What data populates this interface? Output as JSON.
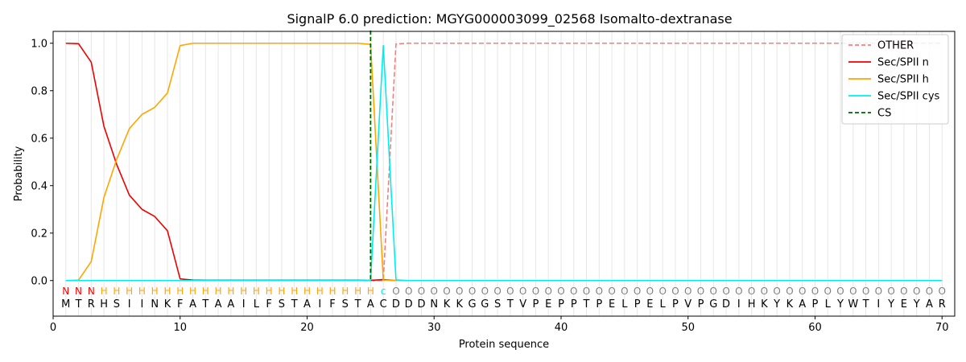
{
  "chart_data": {
    "type": "line",
    "title": "SignalP 6.0 prediction: MGYG000003099_02568 Isomalto-dextranase",
    "xlabel": "Protein sequence",
    "ylabel": "Probability",
    "xlim": [
      0,
      71
    ],
    "ylim": [
      -0.15,
      1.05
    ],
    "x_ticks": [
      0,
      10,
      20,
      30,
      40,
      50,
      60,
      70
    ],
    "y_ticks": [
      0.0,
      0.2,
      0.4,
      0.6,
      0.8,
      1.0
    ],
    "y_tick_labels": [
      "0.0",
      "0.2",
      "0.4",
      "0.6",
      "0.8",
      "1.0"
    ],
    "grid": "vertical lines at each residue",
    "legend_position": "top-right",
    "sequence": [
      "M",
      "T",
      "R",
      "H",
      "S",
      "I",
      "I",
      "N",
      "K",
      "F",
      "A",
      "T",
      "A",
      "A",
      "I",
      "L",
      "F",
      "S",
      "T",
      "A",
      "I",
      "F",
      "S",
      "T",
      "A",
      "C",
      "D",
      "D",
      "D",
      "N",
      "K",
      "K",
      "G",
      "G",
      "S",
      "T",
      "V",
      "P",
      "E",
      "P",
      "P",
      "T",
      "P",
      "E",
      "L",
      "P",
      "E",
      "L",
      "P",
      "V",
      "P",
      "G",
      "D",
      "I",
      "H",
      "K",
      "Y",
      "K",
      "A",
      "P",
      "L",
      "Y",
      "W",
      "T",
      "I",
      "Y",
      "E",
      "Y",
      "A",
      "R"
    ],
    "region_labels": [
      "N",
      "N",
      "N",
      "H",
      "H",
      "H",
      "H",
      "H",
      "H",
      "H",
      "H",
      "H",
      "H",
      "H",
      "H",
      "H",
      "H",
      "H",
      "H",
      "H",
      "H",
      "H",
      "H",
      "H",
      "H",
      "c",
      "O",
      "O",
      "O",
      "O",
      "O",
      "O",
      "O",
      "O",
      "O",
      "O",
      "O",
      "O",
      "O",
      "O",
      "O",
      "O",
      "O",
      "O",
      "O",
      "O",
      "O",
      "O",
      "O",
      "O",
      "O",
      "O",
      "O",
      "O",
      "O",
      "O",
      "O",
      "O",
      "O",
      "O",
      "O",
      "O",
      "O",
      "O",
      "O",
      "O",
      "O",
      "O",
      "O",
      "O"
    ],
    "label_colors": {
      "N": "#ff0000",
      "H": "#ffa500",
      "c": "#00e5ee",
      "O": "#808080"
    },
    "series": [
      {
        "name": "OTHER",
        "color": "#f08080",
        "dash": true,
        "values": [
          0.0,
          0.0,
          0.0,
          0.0,
          0.0,
          0.0,
          0.0,
          0.0,
          0.0,
          0.0,
          0.0,
          0.0,
          0.0,
          0.0,
          0.0,
          0.0,
          0.0,
          0.0,
          0.0,
          0.0,
          0.0,
          0.0,
          0.0,
          0.0,
          0.0,
          0.0,
          0.997,
          1.0,
          1.0,
          1.0,
          1.0,
          1.0,
          1.0,
          1.0,
          1.0,
          1.0,
          1.0,
          1.0,
          1.0,
          1.0,
          1.0,
          1.0,
          1.0,
          1.0,
          1.0,
          1.0,
          1.0,
          1.0,
          1.0,
          1.0,
          1.0,
          1.0,
          1.0,
          1.0,
          1.0,
          1.0,
          1.0,
          1.0,
          1.0,
          1.0,
          1.0,
          1.0,
          1.0,
          1.0,
          1.0,
          1.0,
          1.0,
          1.0,
          1.0,
          1.0
        ]
      },
      {
        "name": "Sec/SPII n",
        "color": "#ee0000",
        "dash": false,
        "values": [
          1.0,
          0.998,
          0.92,
          0.65,
          0.49,
          0.36,
          0.3,
          0.27,
          0.21,
          0.007,
          0.002,
          0.001,
          0.001,
          0.001,
          0.001,
          0.001,
          0.001,
          0.001,
          0.001,
          0.001,
          0.001,
          0.001,
          0.001,
          0.001,
          0.001,
          0.004,
          0.0,
          0.0,
          0.0,
          0.0,
          0.0,
          0.0,
          0.0,
          0.0,
          0.0,
          0.0,
          0.0,
          0.0,
          0.0,
          0.0,
          0.0,
          0.0,
          0.0,
          0.0,
          0.0,
          0.0,
          0.0,
          0.0,
          0.0,
          0.0,
          0.0,
          0.0,
          0.0,
          0.0,
          0.0,
          0.0,
          0.0,
          0.0,
          0.0,
          0.0,
          0.0,
          0.0,
          0.0,
          0.0,
          0.0,
          0.0,
          0.0,
          0.0,
          0.0,
          0.0
        ]
      },
      {
        "name": "Sec/SPII h",
        "color": "#ffa500",
        "dash": false,
        "values": [
          0.0,
          0.002,
          0.08,
          0.35,
          0.51,
          0.64,
          0.7,
          0.73,
          0.79,
          0.99,
          1.0,
          1.0,
          1.0,
          1.0,
          1.0,
          1.0,
          1.0,
          1.0,
          1.0,
          1.0,
          1.0,
          1.0,
          1.0,
          1.0,
          0.995,
          0.002,
          0.0,
          0.0,
          0.0,
          0.0,
          0.0,
          0.0,
          0.0,
          0.0,
          0.0,
          0.0,
          0.0,
          0.0,
          0.0,
          0.0,
          0.0,
          0.0,
          0.0,
          0.0,
          0.0,
          0.0,
          0.0,
          0.0,
          0.0,
          0.0,
          0.0,
          0.0,
          0.0,
          0.0,
          0.0,
          0.0,
          0.0,
          0.0,
          0.0,
          0.0,
          0.0,
          0.0,
          0.0,
          0.0,
          0.0,
          0.0,
          0.0,
          0.0,
          0.0,
          0.0
        ]
      },
      {
        "name": "Sec/SPII cys",
        "color": "#00eeee",
        "dash": false,
        "values": [
          0.0,
          0.0,
          0.0,
          0.0,
          0.0,
          0.0,
          0.0,
          0.0,
          0.0,
          0.0,
          0.0,
          0.0,
          0.0,
          0.0,
          0.0,
          0.0,
          0.0,
          0.0,
          0.0,
          0.0,
          0.0,
          0.0,
          0.0,
          0.0,
          0.002,
          0.99,
          0.003,
          0.0,
          0.0,
          0.0,
          0.0,
          0.0,
          0.0,
          0.0,
          0.0,
          0.0,
          0.0,
          0.0,
          0.0,
          0.0,
          0.0,
          0.0,
          0.0,
          0.0,
          0.0,
          0.0,
          0.0,
          0.0,
          0.0,
          0.0,
          0.0,
          0.0,
          0.0,
          0.0,
          0.0,
          0.0,
          0.0,
          0.0,
          0.0,
          0.0,
          0.0,
          0.0,
          0.0,
          0.0,
          0.0,
          0.0,
          0.0,
          0.0,
          0.0,
          0.0
        ]
      }
    ],
    "cs": {
      "name": "CS",
      "x": 25,
      "color": "#006400"
    }
  }
}
